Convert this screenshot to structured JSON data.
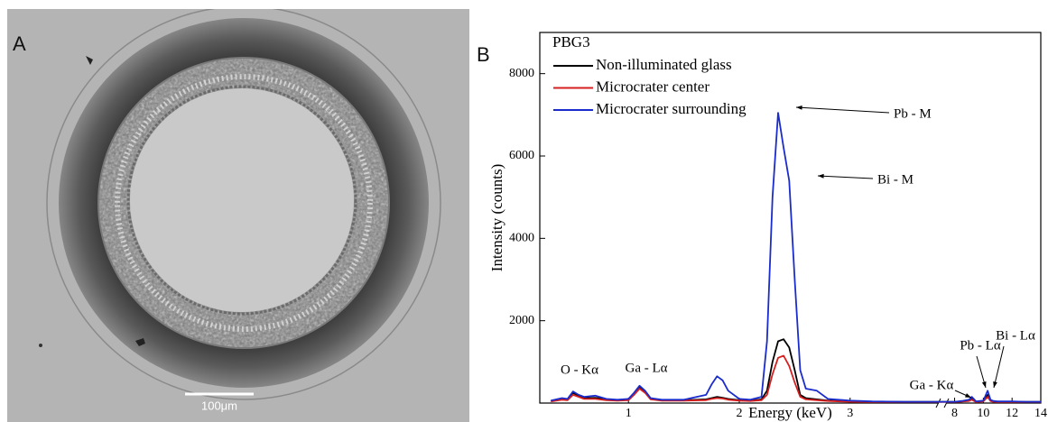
{
  "panels": [
    {
      "label": "A",
      "scale_bar": "100μm"
    },
    {
      "label": "B"
    }
  ],
  "chart_data": {
    "type": "line",
    "legend_title": "PBG3",
    "xlabel": "Energy (keV)",
    "ylabel": "Intensity (counts)",
    "xlim": [
      0.2,
      14
    ],
    "xbreak": [
      3.8,
      7.4
    ],
    "xticks": [
      1,
      2,
      3,
      8,
      10,
      12,
      14
    ],
    "ylim": [
      0,
      9000
    ],
    "yticks": [
      2000,
      4000,
      6000,
      8000
    ],
    "x": [
      0.3,
      0.4,
      0.45,
      0.5,
      0.55,
      0.6,
      0.7,
      0.8,
      0.9,
      1.0,
      1.05,
      1.1,
      1.15,
      1.2,
      1.3,
      1.5,
      1.7,
      1.75,
      1.8,
      1.85,
      1.9,
      2.0,
      2.1,
      2.2,
      2.25,
      2.3,
      2.35,
      2.4,
      2.45,
      2.5,
      2.55,
      2.6,
      2.7,
      2.8,
      3.0,
      3.2,
      3.5,
      3.7,
      8.0,
      8.5,
      9.0,
      9.2,
      9.5,
      10.0,
      10.3,
      10.5,
      10.7,
      11,
      12,
      13,
      14
    ],
    "series": [
      {
        "name": "Non-illuminated glass",
        "color": "#000000",
        "values": [
          50,
          100,
          90,
          250,
          180,
          120,
          130,
          90,
          70,
          90,
          220,
          380,
          280,
          110,
          70,
          70,
          90,
          120,
          150,
          130,
          100,
          70,
          60,
          90,
          300,
          1000,
          1500,
          1550,
          1350,
          800,
          200,
          120,
          90,
          60,
          40,
          30,
          30,
          30,
          30,
          40,
          60,
          100,
          30,
          50,
          200,
          60,
          40,
          30,
          30,
          30,
          30
        ]
      },
      {
        "name": "Microcrater center",
        "color": "#d62020",
        "values": [
          40,
          80,
          70,
          200,
          150,
          100,
          100,
          70,
          60,
          70,
          200,
          350,
          250,
          90,
          60,
          60,
          70,
          100,
          120,
          110,
          80,
          60,
          50,
          70,
          200,
          700,
          1100,
          1150,
          900,
          500,
          150,
          90,
          70,
          50,
          30,
          25,
          25,
          25,
          25,
          35,
          50,
          80,
          25,
          40,
          150,
          50,
          30,
          25,
          25,
          25,
          25
        ]
      },
      {
        "name": "Microcrater surrounding",
        "color": "#1a2ccc",
        "values": [
          60,
          120,
          100,
          280,
          200,
          150,
          180,
          100,
          80,
          100,
          250,
          420,
          300,
          120,
          80,
          80,
          200,
          450,
          650,
          550,
          300,
          100,
          80,
          150,
          1500,
          5000,
          7050,
          6200,
          5400,
          3000,
          800,
          350,
          300,
          100,
          60,
          40,
          30,
          30,
          30,
          50,
          80,
          150,
          40,
          60,
          300,
          80,
          50,
          40,
          40,
          30,
          30
        ]
      }
    ],
    "annotations": [
      "Pb - M",
      "Bi - M",
      "O - Kα",
      "Ga - Lα",
      "Ga - Kα",
      "Pb - Lα",
      "Bi - Lα"
    ]
  }
}
